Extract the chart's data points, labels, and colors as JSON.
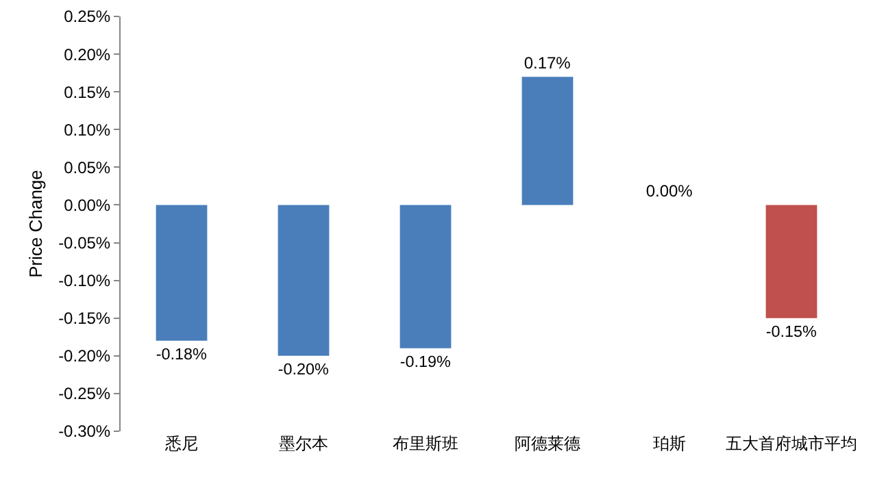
{
  "chart_data": {
    "type": "bar",
    "ylabel": "Price Change",
    "categories": [
      "悉尼",
      "墨尔本",
      "布里斯班",
      "阿德莱德",
      "珀斯",
      "五大首府城市平均"
    ],
    "values": [
      -0.18,
      -0.2,
      -0.19,
      0.17,
      0.0,
      -0.15
    ],
    "value_labels": [
      "-0.18%",
      "-0.20%",
      "-0.19%",
      "0.17%",
      "0.00%",
      "-0.15%"
    ],
    "colors": [
      "#4a7ebb",
      "#4a7ebb",
      "#4a7ebb",
      "#4a7ebb",
      "#4a7ebb",
      "#c0504d"
    ],
    "ylim": [
      -0.3,
      0.25
    ],
    "yticks": [
      {
        "value": 0.25,
        "label": "0.25%"
      },
      {
        "value": 0.2,
        "label": "0.20%"
      },
      {
        "value": 0.15,
        "label": "0.15%"
      },
      {
        "value": 0.1,
        "label": "0.10%"
      },
      {
        "value": 0.05,
        "label": "0.05%"
      },
      {
        "value": 0,
        "label": "0.00%"
      },
      {
        "value": -0.05,
        "label": "-0.05%"
      },
      {
        "value": -0.1,
        "label": "-0.10%"
      },
      {
        "value": -0.15,
        "label": "-0.15%"
      },
      {
        "value": -0.2,
        "label": "-0.20%"
      },
      {
        "value": -0.25,
        "label": "-0.25%"
      },
      {
        "value": -0.3,
        "label": "-0.30%"
      }
    ],
    "grid": false,
    "legend": false
  }
}
